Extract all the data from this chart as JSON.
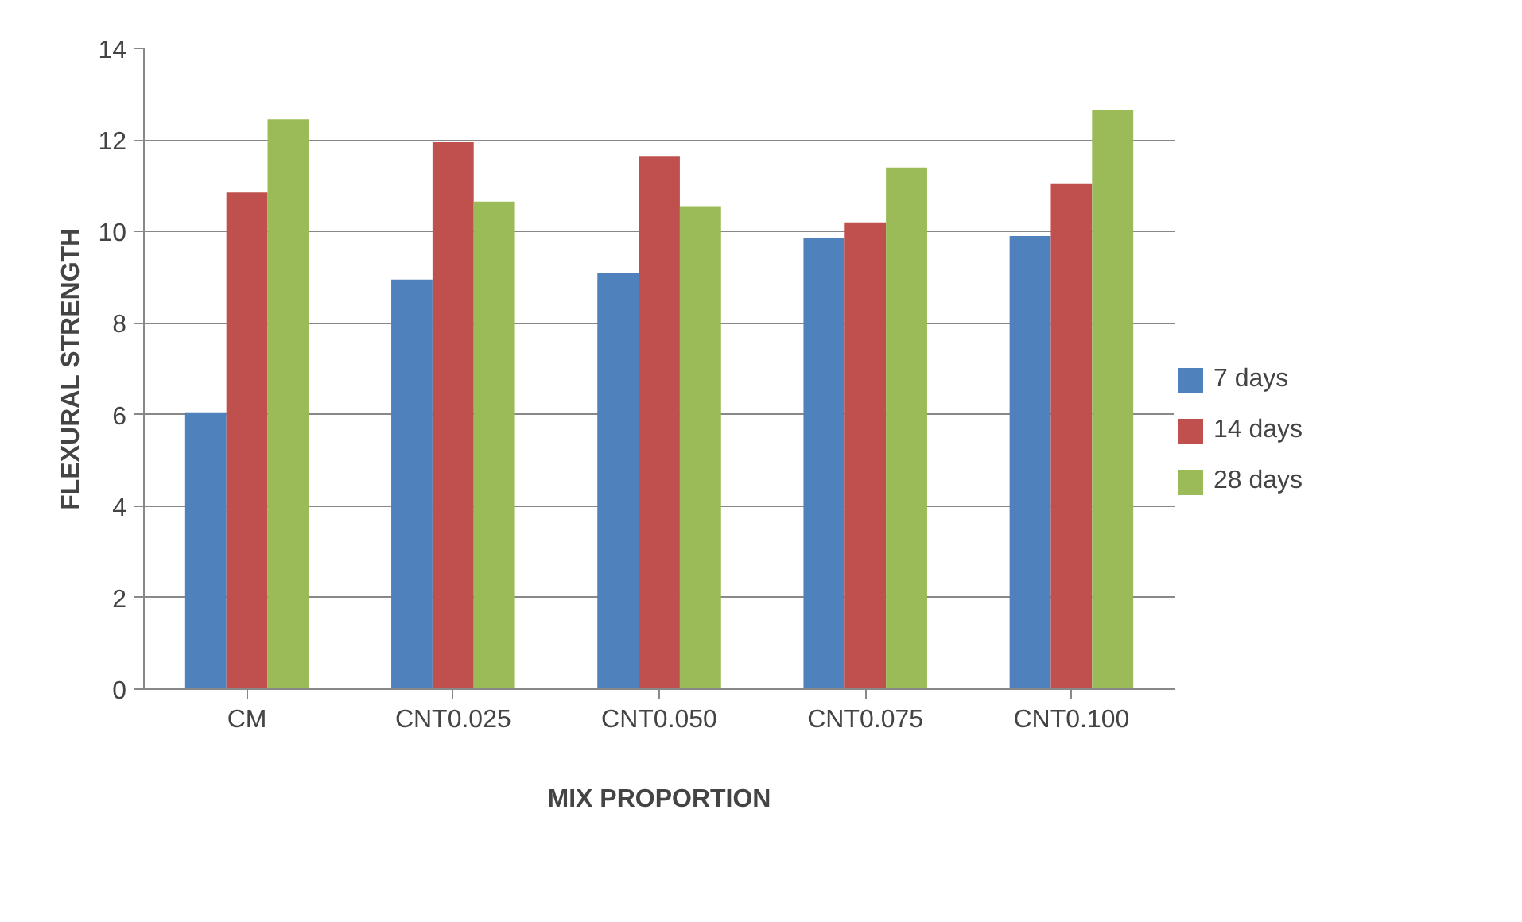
{
  "chart_data": {
    "type": "bar",
    "xlabel": "MIX PROPORTION",
    "ylabel": "FLEXURAL STRENGTH",
    "categories": [
      "CM",
      "CNT0.025",
      "CNT0.050",
      "CNT0.075",
      "CNT0.100"
    ],
    "series": [
      {
        "name": "7 days",
        "color": "#4f81bd",
        "values": [
          6.05,
          8.95,
          9.1,
          9.85,
          9.9
        ]
      },
      {
        "name": "14 days",
        "color": "#c0504d",
        "values": [
          10.85,
          11.95,
          11.65,
          10.2,
          11.05
        ]
      },
      {
        "name": "28 days",
        "color": "#9bbb59",
        "values": [
          12.45,
          10.65,
          10.55,
          11.4,
          12.65
        ]
      }
    ],
    "ylim": [
      0,
      14
    ],
    "yticks": [
      0,
      2,
      4,
      6,
      8,
      10,
      12,
      14
    ],
    "grid": "y",
    "legend": "right"
  }
}
